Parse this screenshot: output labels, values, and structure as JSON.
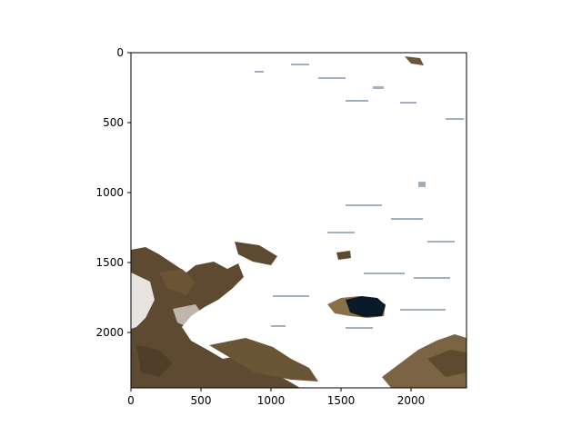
{
  "axes": {
    "x_ticks": [
      "0",
      "500",
      "1000",
      "1500",
      "2000"
    ],
    "y_ticks": [
      "0",
      "500",
      "1000",
      "1500",
      "2000"
    ],
    "x_range": [
      0,
      2400
    ],
    "y_range": [
      0,
      2400
    ],
    "y_inverted": true,
    "grid": false
  },
  "image": {
    "description_colors": {
      "snow": "#ffffff",
      "terrain": "#5e4a30",
      "lake": "#0b1a28",
      "shadow": "#7a8ea8"
    },
    "icon": "satellite-image"
  }
}
